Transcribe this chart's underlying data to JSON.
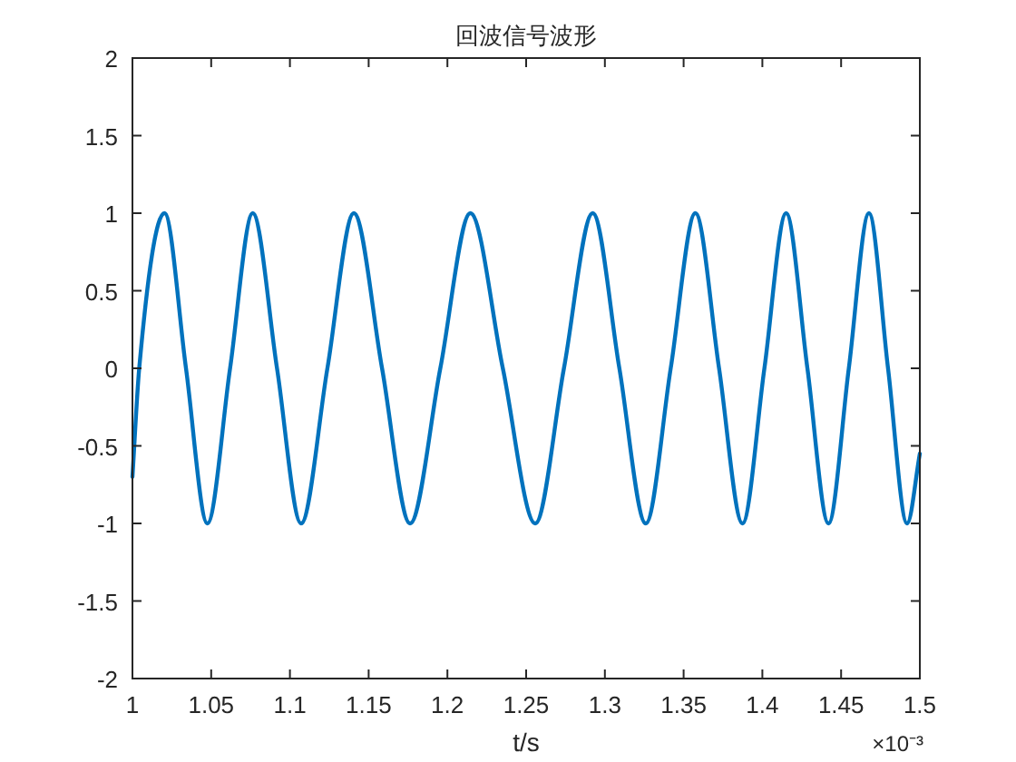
{
  "chart_data": {
    "type": "line",
    "title": "回波信号波形",
    "xlabel": "t/s",
    "annotations": [
      "×10⁻³"
    ],
    "x": [
      1,
      1.0043,
      1.0204,
      1.034,
      1.0476,
      1.062,
      1.0764,
      1.0918,
      1.1071,
      1.1238,
      1.1406,
      1.1585,
      1.1763,
      1.1955,
      1.2146,
      1.2352,
      1.2558,
      1.274,
      1.2923,
      1.3092,
      1.326,
      1.3418,
      1.3575,
      1.3725,
      1.3874,
      1.4013,
      1.4151,
      1.4286,
      1.442,
      1.4549,
      1.4677,
      1.4798,
      1.4919,
      1.5
    ],
    "series": [
      {
        "color": "#0072bd",
        "values": [
          -0.7,
          0,
          1,
          0,
          -1,
          0,
          1,
          0,
          -1,
          0,
          1,
          0,
          -1,
          0,
          1,
          0,
          -1,
          0,
          1,
          0,
          -1,
          0,
          1,
          0,
          -1,
          0,
          1,
          0,
          -1,
          0,
          1,
          0,
          -1,
          -0.55
        ]
      }
    ],
    "xlim": [
      1,
      1.5
    ],
    "xticks": [
      1,
      1.05,
      1.1,
      1.15,
      1.2,
      1.25,
      1.3,
      1.35,
      1.4,
      1.45,
      1.5
    ],
    "ylim": [
      -2,
      2
    ],
    "yticks": [
      -2,
      -1.5,
      -1,
      -0.5,
      0,
      0.5,
      1,
      1.5,
      2
    ],
    "grid": false,
    "line_style": "solid",
    "marker": "none"
  }
}
